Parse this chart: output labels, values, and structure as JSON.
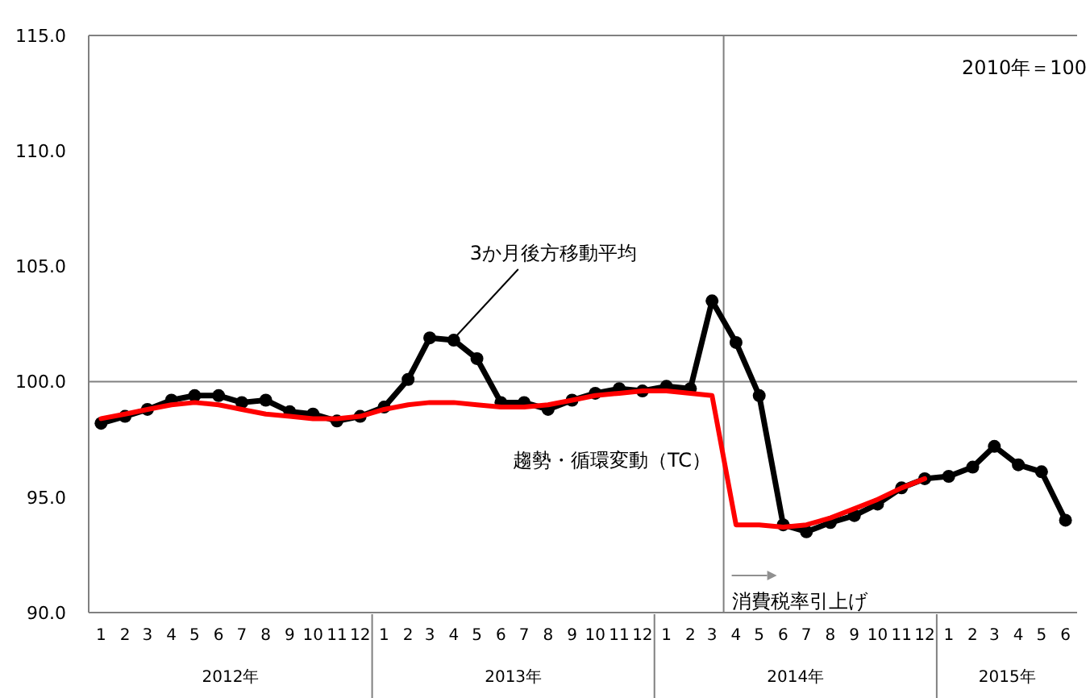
{
  "chart_data": {
    "type": "line",
    "x": [
      "2012-01",
      "2012-02",
      "2012-03",
      "2012-04",
      "2012-05",
      "2012-06",
      "2012-07",
      "2012-08",
      "2012-09",
      "2012-10",
      "2012-11",
      "2012-12",
      "2013-01",
      "2013-02",
      "2013-03",
      "2013-04",
      "2013-05",
      "2013-06",
      "2013-07",
      "2013-08",
      "2013-09",
      "2013-10",
      "2013-11",
      "2013-12",
      "2014-01",
      "2014-02",
      "2014-03",
      "2014-04",
      "2014-05",
      "2014-06",
      "2014-07",
      "2014-08",
      "2014-09",
      "2014-10",
      "2014-11",
      "2014-12",
      "2015-01",
      "2015-02",
      "2015-03",
      "2015-04",
      "2015-05",
      "2015-06"
    ],
    "series": [
      {
        "name": "3か月後方移動平均",
        "color": "#000000",
        "marker": "circle",
        "values": [
          98.2,
          98.5,
          98.8,
          99.2,
          99.4,
          99.4,
          99.1,
          99.2,
          98.7,
          98.6,
          98.3,
          98.5,
          98.9,
          100.1,
          101.9,
          101.8,
          101.0,
          99.1,
          99.1,
          98.8,
          99.2,
          99.5,
          99.7,
          99.6,
          99.8,
          99.7,
          103.5,
          101.7,
          99.4,
          93.8,
          93.5,
          93.9,
          94.2,
          94.7,
          95.4,
          95.8,
          95.9,
          96.3,
          97.2,
          96.4,
          96.1,
          94.0
        ]
      },
      {
        "name": "趨勢・循環変動（TC）",
        "color": "#ff0000",
        "marker": "none",
        "values": [
          98.4,
          98.6,
          98.8,
          99.0,
          99.1,
          99.0,
          98.8,
          98.6,
          98.5,
          98.4,
          98.4,
          98.5,
          98.8,
          99.0,
          99.1,
          99.1,
          99.0,
          98.9,
          98.9,
          99.0,
          99.2,
          99.4,
          99.5,
          99.6,
          99.6,
          99.5,
          99.4,
          93.8,
          93.8,
          93.7,
          93.8,
          94.1,
          94.5,
          94.9,
          95.4,
          95.8,
          null,
          null,
          null,
          null,
          null,
          null
        ]
      }
    ],
    "xlim": [
      "2011-12-16",
      "2015-06-16"
    ],
    "xticks": [
      {
        "value": "2012-01",
        "label": "1"
      },
      {
        "value": "2012-02",
        "label": "2"
      },
      {
        "value": "2012-03",
        "label": "3"
      },
      {
        "value": "2012-04",
        "label": "4"
      },
      {
        "value": "2012-05",
        "label": "5"
      },
      {
        "value": "2012-06",
        "label": "6"
      },
      {
        "value": "2012-07",
        "label": "7"
      },
      {
        "value": "2012-08",
        "label": "8"
      },
      {
        "value": "2012-09",
        "label": "9"
      },
      {
        "value": "2012-10",
        "label": "10"
      },
      {
        "value": "2012-11",
        "label": "11"
      },
      {
        "value": "2012-12",
        "label": "12"
      },
      {
        "value": "2013-01",
        "label": "1"
      },
      {
        "value": "2013-02",
        "label": "2"
      },
      {
        "value": "2013-03",
        "label": "3"
      },
      {
        "value": "2013-04",
        "label": "4"
      },
      {
        "value": "2013-05",
        "label": "5"
      },
      {
        "value": "2013-06",
        "label": "6"
      },
      {
        "value": "2013-07",
        "label": "7"
      },
      {
        "value": "2013-08",
        "label": "8"
      },
      {
        "value": "2013-09",
        "label": "9"
      },
      {
        "value": "2013-10",
        "label": "10"
      },
      {
        "value": "2013-11",
        "label": "11"
      },
      {
        "value": "2013-12",
        "label": "12"
      },
      {
        "value": "2014-01",
        "label": "1"
      },
      {
        "value": "2014-02",
        "label": "2"
      },
      {
        "value": "2014-03",
        "label": "3"
      },
      {
        "value": "2014-04",
        "label": "4"
      },
      {
        "value": "2014-05",
        "label": "5"
      },
      {
        "value": "2014-06",
        "label": "6"
      },
      {
        "value": "2014-07",
        "label": "7"
      },
      {
        "value": "2014-08",
        "label": "8"
      },
      {
        "value": "2014-09",
        "label": "9"
      },
      {
        "value": "2014-10",
        "label": "10"
      },
      {
        "value": "2014-11",
        "label": "11"
      },
      {
        "value": "2014-12",
        "label": "12"
      },
      {
        "value": "2015-01",
        "label": "1"
      },
      {
        "value": "2015-02",
        "label": "2"
      },
      {
        "value": "2015-03",
        "label": "3"
      },
      {
        "value": "2015-04",
        "label": "4"
      },
      {
        "value": "2015-05",
        "label": "5"
      },
      {
        "value": "2015-06",
        "label": "6"
      }
    ],
    "ylim": [
      90,
      115
    ],
    "yticks": [
      {
        "value": 90,
        "label": "90.0"
      },
      {
        "value": 95,
        "label": "95.0"
      },
      {
        "value": 100,
        "label": "100.0"
      },
      {
        "value": 105,
        "label": "105.0"
      },
      {
        "value": 110,
        "label": "110.0"
      },
      {
        "value": 115,
        "label": "115.0"
      }
    ],
    "grid": false,
    "ref_lines": [
      {
        "axis": "y",
        "value": 100,
        "color": "#808080"
      },
      {
        "axis": "x",
        "value": "2014-03-16",
        "label": "消費税率引上げ",
        "color": "#808080"
      }
    ],
    "annotations": [
      "2010年＝100",
      "2012年",
      "2013年",
      "2014年",
      "2015年"
    ],
    "line_style": "solid"
  }
}
